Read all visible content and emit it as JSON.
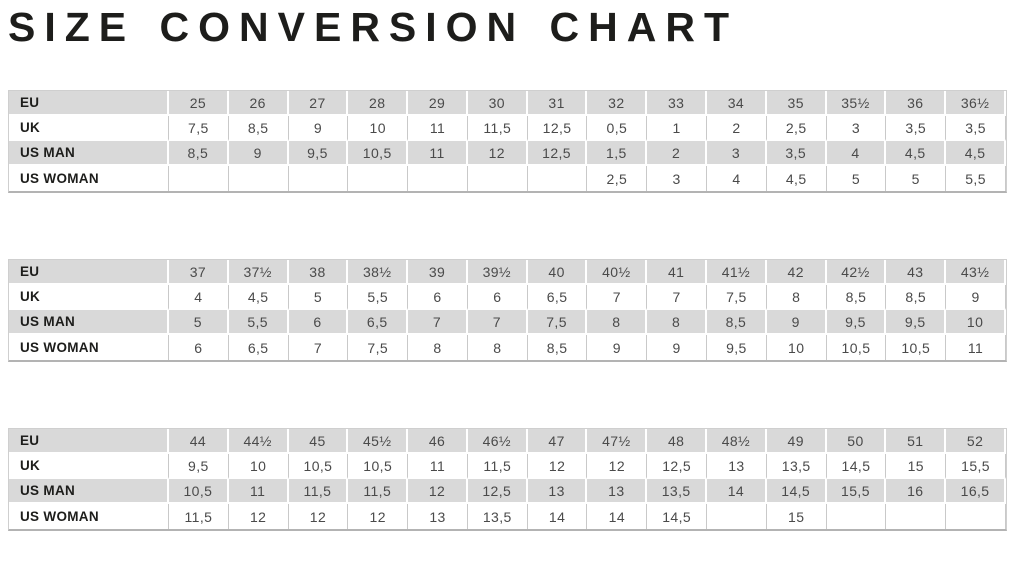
{
  "page": {
    "title": "SIZE CONVERSION CHART"
  },
  "colors": {
    "title_text": "#1d1d1b",
    "label_text": "#1d1d1b",
    "value_text": "#4a4a4a",
    "shaded_row_bg": "#d9d9d9",
    "plain_row_bg": "#ffffff",
    "shaded_divider": "#ffffff",
    "plain_divider": "#c9c9c9",
    "table_top_border": "#cfcfcf",
    "table_bottom_border": "#b3b3b3"
  },
  "chart_data": [
    {
      "type": "table",
      "name": "size-table-eu-25-36half",
      "rows": [
        {
          "label": "EU",
          "shaded": true,
          "values": [
            "25",
            "26",
            "27",
            "28",
            "29",
            "30",
            "31",
            "32",
            "33",
            "34",
            "35",
            "35½",
            "36",
            "36½"
          ]
        },
        {
          "label": "UK",
          "shaded": false,
          "values": [
            "7,5",
            "8,5",
            "9",
            "10",
            "11",
            "11,5",
            "12,5",
            "0,5",
            "1",
            "2",
            "2,5",
            "3",
            "3,5",
            "3,5"
          ]
        },
        {
          "label": "US MAN",
          "shaded": true,
          "values": [
            "8,5",
            "9",
            "9,5",
            "10,5",
            "11",
            "12",
            "12,5",
            "1,5",
            "2",
            "3",
            "3,5",
            "4",
            "4,5",
            "4,5"
          ]
        },
        {
          "label": "US WOMAN",
          "shaded": false,
          "values": [
            "",
            "",
            "",
            "",
            "",
            "",
            "",
            "2,5",
            "3",
            "4",
            "4,5",
            "5",
            "5",
            "5,5"
          ]
        }
      ]
    },
    {
      "type": "table",
      "name": "size-table-eu-37-43half",
      "rows": [
        {
          "label": "EU",
          "shaded": true,
          "values": [
            "37",
            "37½",
            "38",
            "38½",
            "39",
            "39½",
            "40",
            "40½",
            "41",
            "41½",
            "42",
            "42½",
            "43",
            "43½"
          ]
        },
        {
          "label": "UK",
          "shaded": false,
          "values": [
            "4",
            "4,5",
            "5",
            "5,5",
            "6",
            "6",
            "6,5",
            "7",
            "7",
            "7,5",
            "8",
            "8,5",
            "8,5",
            "9"
          ]
        },
        {
          "label": "US MAN",
          "shaded": true,
          "values": [
            "5",
            "5,5",
            "6",
            "6,5",
            "7",
            "7",
            "7,5",
            "8",
            "8",
            "8,5",
            "9",
            "9,5",
            "9,5",
            "10"
          ]
        },
        {
          "label": "US WOMAN",
          "shaded": false,
          "values": [
            "6",
            "6,5",
            "7",
            "7,5",
            "8",
            "8",
            "8,5",
            "9",
            "9",
            "9,5",
            "10",
            "10,5",
            "10,5",
            "11"
          ]
        }
      ]
    },
    {
      "type": "table",
      "name": "size-table-eu-44-52",
      "rows": [
        {
          "label": "EU",
          "shaded": true,
          "values": [
            "44",
            "44½",
            "45",
            "45½",
            "46",
            "46½",
            "47",
            "47½",
            "48",
            "48½",
            "49",
            "50",
            "51",
            "52"
          ]
        },
        {
          "label": "UK",
          "shaded": false,
          "values": [
            "9,5",
            "10",
            "10,5",
            "10,5",
            "11",
            "11,5",
            "12",
            "12",
            "12,5",
            "13",
            "13,5",
            "14,5",
            "15",
            "15,5"
          ]
        },
        {
          "label": "US MAN",
          "shaded": true,
          "values": [
            "10,5",
            "11",
            "11,5",
            "11,5",
            "12",
            "12,5",
            "13",
            "13",
            "13,5",
            "14",
            "14,5",
            "15,5",
            "16",
            "16,5"
          ]
        },
        {
          "label": "US WOMAN",
          "shaded": false,
          "values": [
            "11,5",
            "12",
            "12",
            "12",
            "13",
            "13,5",
            "14",
            "14",
            "14,5",
            "",
            "15",
            "",
            "",
            ""
          ]
        }
      ]
    }
  ]
}
